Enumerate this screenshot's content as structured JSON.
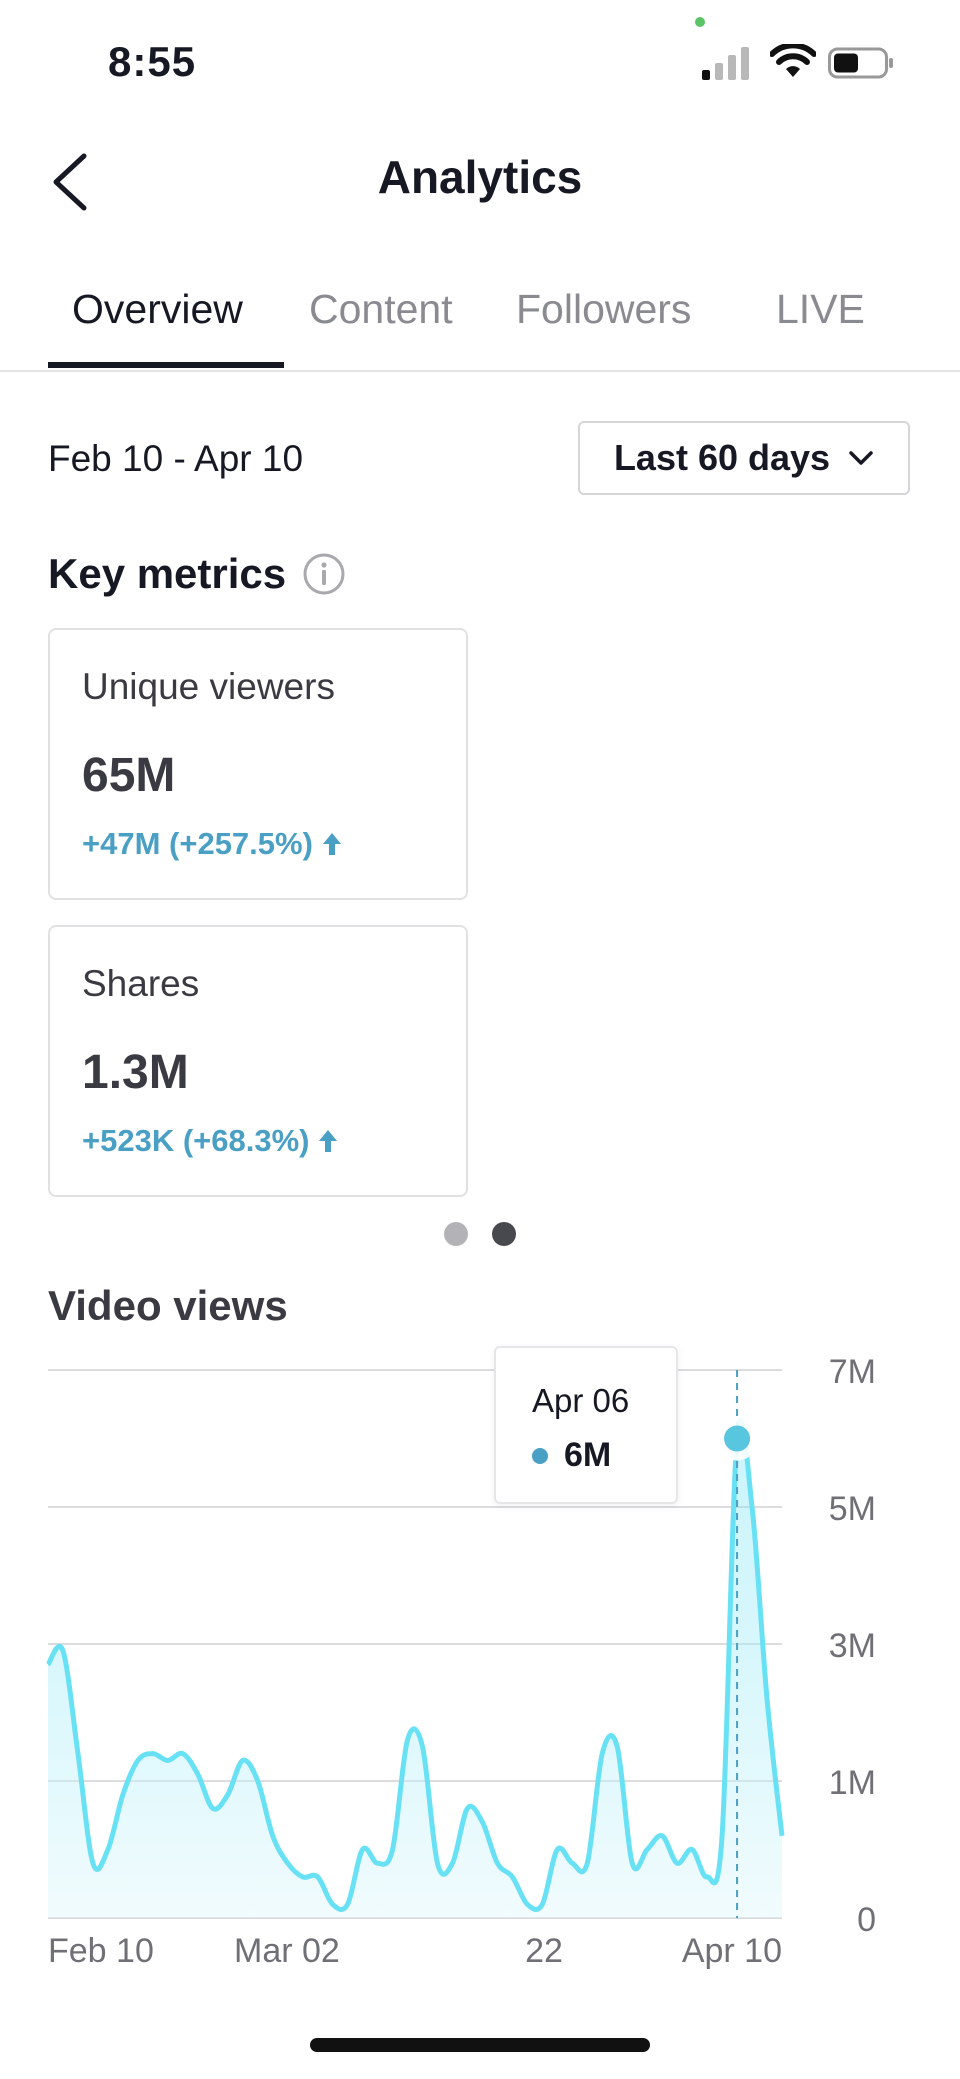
{
  "status_bar": {
    "time": "8:55"
  },
  "header": {
    "title": "Analytics"
  },
  "tabs": [
    {
      "label": "Overview",
      "active": true
    },
    {
      "label": "Content",
      "active": false
    },
    {
      "label": "Followers",
      "active": false
    },
    {
      "label": "LIVE",
      "active": false
    }
  ],
  "filters": {
    "date_range": "Feb 10 - Apr 10",
    "period_label": "Last 60 days"
  },
  "key_metrics": {
    "title": "Key metrics",
    "cards": [
      {
        "label": "Unique viewers",
        "value": "65M",
        "delta": "+47M (+257.5%)"
      },
      {
        "label": "Shares",
        "value": "1.3M",
        "delta": "+523K (+68.3%)"
      }
    ],
    "pager": {
      "pages": 2,
      "active_index": 1
    }
  },
  "video_views": {
    "title": "Video views"
  },
  "tooltip": {
    "date": "Apr 06",
    "value": "6M"
  },
  "colors": {
    "accent": "#4a9fc4",
    "line": "#69e1f5",
    "fill": "#e4f8fc",
    "text": "#161823"
  },
  "chart_data": {
    "type": "area",
    "title": "Video views",
    "x_ticks": [
      "Feb 10",
      "Mar 02",
      "22",
      "Apr 10"
    ],
    "y_ticks": [
      "7M",
      "5M",
      "3M",
      "1M",
      "0"
    ],
    "y_tick_values": [
      7,
      5,
      3,
      1,
      0
    ],
    "unit": "M",
    "ylim": [
      0,
      7
    ],
    "grid": true,
    "series": [
      {
        "values": [
          2.7,
          2.9,
          1.4,
          0.4,
          0.5,
          0.9,
          1.3,
          1.4,
          1.3,
          1.4,
          1.1,
          0.8,
          0.9,
          1.3,
          1.0,
          0.6,
          0.4,
          0.3,
          0.3,
          0.1,
          0.1,
          0.5,
          0.4,
          0.5,
          1.6,
          1.5,
          0.4,
          0.4,
          0.8,
          0.7,
          0.4,
          0.3,
          0.1,
          0.1,
          0.5,
          0.4,
          0.4,
          1.4,
          1.5,
          0.4,
          0.5,
          0.6,
          0.4,
          0.5,
          0.3,
          0.6,
          6.0,
          5.0,
          2.2,
          0.6
        ]
      }
    ],
    "highlight": {
      "x": "Apr 06",
      "value": 6
    }
  }
}
